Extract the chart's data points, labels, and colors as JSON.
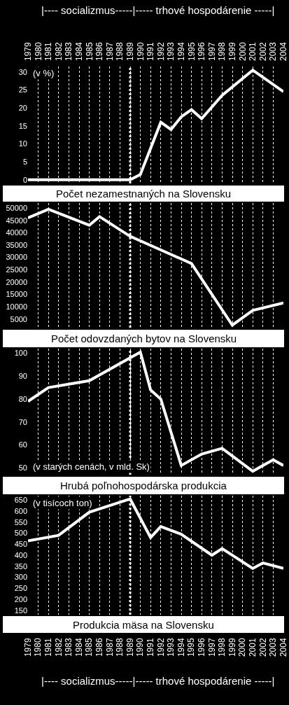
{
  "chart_data": [
    {
      "type": "line",
      "title": "Počet nezamestnaných na Slovensku",
      "annotations": [
        "|---- socializmus-----|----- trhové hospodárenie -----|",
        "(v %)"
      ],
      "series": [
        {
          "color": "#ffffff",
          "x": [
            1979,
            1989,
            1990,
            1992,
            1993,
            1994,
            1995,
            1996,
            1998,
            2001,
            2004
          ],
          "values": [
            0,
            0,
            1.5,
            16,
            14,
            17.5,
            19.5,
            17,
            23.5,
            30.5,
            24.5
          ]
        }
      ],
      "xlim": [
        1979,
        2004
      ],
      "xticks": [
        1979,
        1980,
        1981,
        1982,
        1983,
        1984,
        1985,
        1986,
        1987,
        1988,
        1989,
        1990,
        1991,
        1992,
        1993,
        1994,
        1995,
        1996,
        1997,
        1998,
        1999,
        2000,
        2001,
        2002,
        2003,
        2004
      ],
      "x2lim": [
        1979,
        2004
      ],
      "x2ticks": [
        1979,
        1980,
        1981,
        1982,
        1983,
        1984,
        1985,
        1986,
        1987,
        1988,
        1989,
        1990,
        1991,
        1992,
        1993,
        1994,
        1995,
        1996,
        1997,
        1998,
        1999,
        2000,
        2001,
        2002,
        2003,
        2004
      ],
      "ylim": [
        -1,
        31.5
      ],
      "yticks": [
        0,
        5,
        10,
        15,
        20,
        25,
        30
      ],
      "tick_labels": "y",
      "grid": "x",
      "ref_lines": [
        {
          "axis": "x",
          "value": 1989,
          "line_style": "dotted",
          "color": "#ffffff"
        }
      ]
    },
    {
      "type": "line",
      "title": "Počet odovzdaných bytov na Slovensku",
      "series": [
        {
          "color": "#ffffff",
          "x": [
            1979,
            1981,
            1985,
            1986,
            1989,
            1995,
            1999,
            2001,
            2004
          ],
          "values": [
            46000,
            49500,
            43000,
            46500,
            38500,
            27500,
            2500,
            8500,
            11500
          ]
        }
      ],
      "xlim": [
        1979,
        2004
      ],
      "xticks": [
        1979,
        1980,
        1981,
        1982,
        1983,
        1984,
        1985,
        1986,
        1987,
        1988,
        1989,
        1990,
        1991,
        1992,
        1993,
        1994,
        1995,
        1996,
        1997,
        1998,
        1999,
        2000,
        2001,
        2002,
        2003,
        2004
      ],
      "ylim": [
        1500,
        52000
      ],
      "yticks": [
        5000,
        10000,
        15000,
        20000,
        25000,
        30000,
        35000,
        40000,
        45000,
        50000
      ],
      "tick_labels": "y",
      "grid": "x",
      "ref_lines": [
        {
          "axis": "x",
          "value": 1989,
          "line_style": "dotted",
          "color": "#ffffff"
        }
      ]
    },
    {
      "type": "line",
      "title": "Hrubá poľnohospodárska produkcia",
      "annotations": [
        "(v starých cenách, v mld. Sk)"
      ],
      "series": [
        {
          "color": "#ffffff",
          "x": [
            1979,
            1981,
            1985,
            1990,
            1991,
            1992,
            1994,
            1996,
            1998,
            2001,
            2003,
            2004
          ],
          "values": [
            79,
            85,
            88,
            100.5,
            84,
            80,
            51,
            56,
            58.5,
            48.5,
            53.5,
            51
          ]
        }
      ],
      "xlim": [
        1979,
        2004
      ],
      "xticks": [
        1979,
        1980,
        1981,
        1982,
        1983,
        1984,
        1985,
        1986,
        1987,
        1988,
        1989,
        1990,
        1991,
        1992,
        1993,
        1994,
        1995,
        1996,
        1997,
        1998,
        1999,
        2000,
        2001,
        2002,
        2003,
        2004
      ],
      "ylim": [
        47,
        102
      ],
      "yticks": [
        50,
        60,
        70,
        80,
        90,
        100
      ],
      "tick_labels": "y",
      "grid": "x",
      "ref_lines": [
        {
          "axis": "x",
          "value": 1989,
          "line_style": "dotted",
          "color": "#ffffff"
        }
      ]
    },
    {
      "type": "line",
      "title": "Produkcia mäsa na Slovensku",
      "annotations": [
        "(v tisícoch ton)",
        "|---- socializmus-----|----- trhové hospodárenie -----|"
      ],
      "series": [
        {
          "color": "#ffffff",
          "x": [
            1979,
            1982,
            1985,
            1989,
            1991,
            1992,
            1994,
            1997,
            1998,
            2001,
            2002,
            2004
          ],
          "values": [
            465,
            490,
            595,
            655,
            480,
            530,
            495,
            400,
            430,
            340,
            365,
            340
          ]
        }
      ],
      "xlim": [
        1979,
        2004
      ],
      "xticks": [
        1979,
        1980,
        1981,
        1982,
        1983,
        1984,
        1985,
        1986,
        1987,
        1988,
        1989,
        1990,
        1991,
        1992,
        1993,
        1994,
        1995,
        1996,
        1997,
        1998,
        1999,
        2000,
        2001,
        2002,
        2003,
        2004
      ],
      "ylim": [
        130,
        670
      ],
      "yticks": [
        150,
        200,
        250,
        300,
        350,
        400,
        450,
        500,
        550,
        600,
        650
      ],
      "grid": "x",
      "ref_lines": [
        {
          "axis": "x",
          "value": 1989,
          "line_style": "dotted",
          "color": "#ffffff"
        }
      ]
    }
  ]
}
